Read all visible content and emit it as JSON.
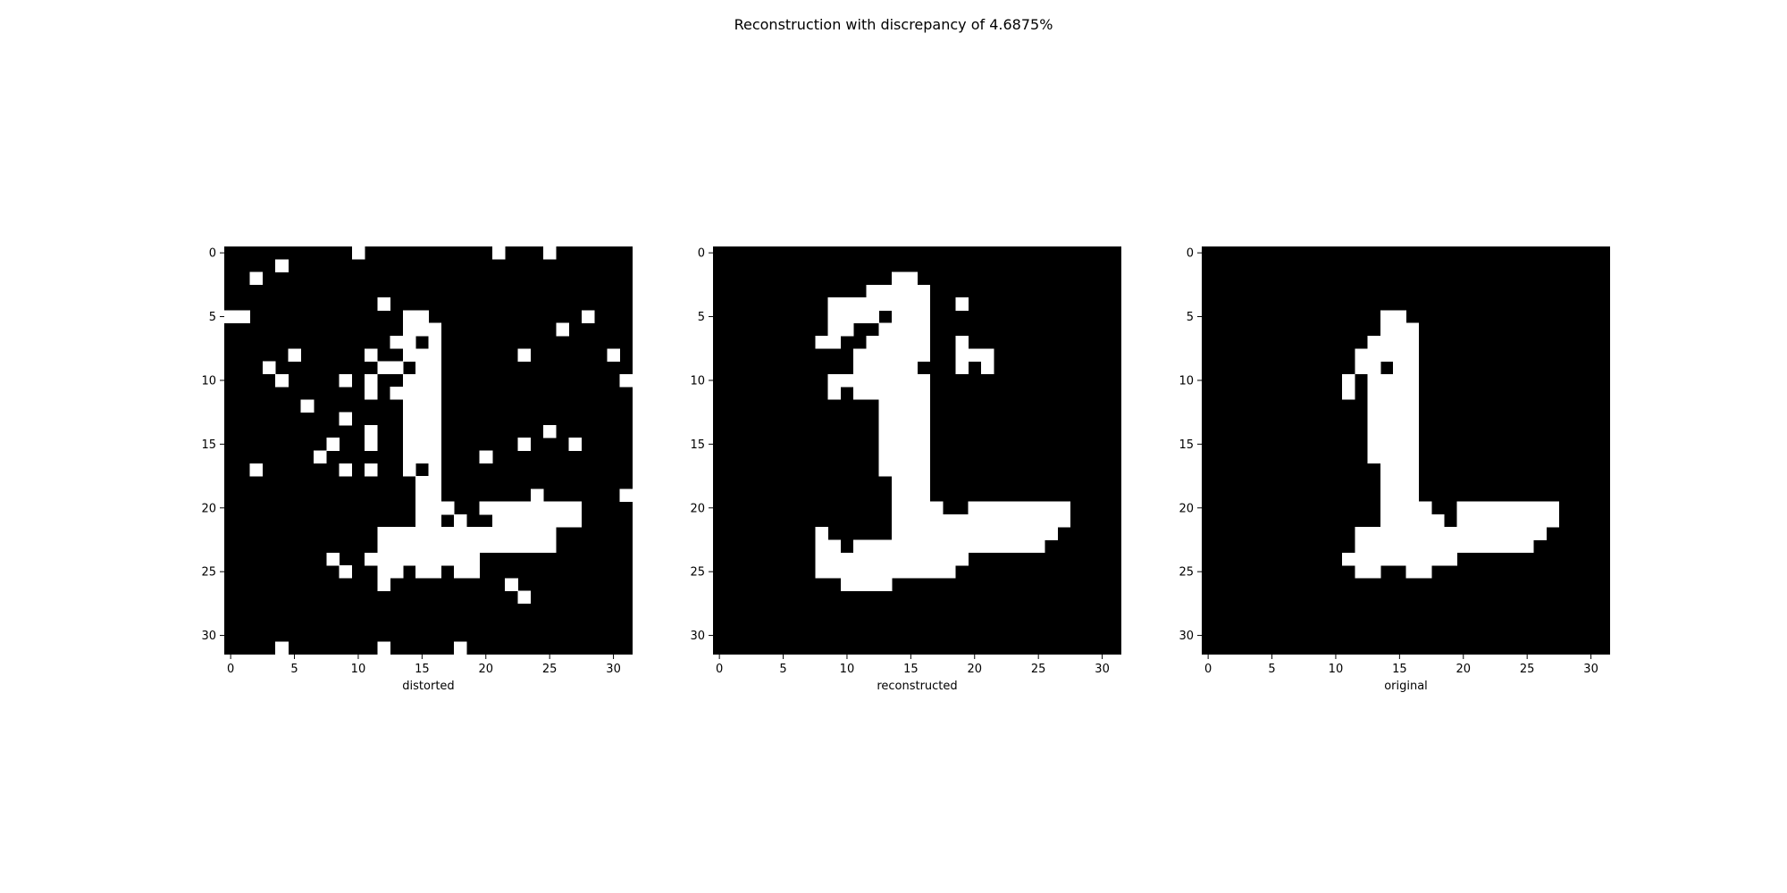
{
  "title": "Reconstruction with discrepancy of 4.6875%",
  "chart_data": [
    {
      "type": "heatmap",
      "xlabel": "distorted",
      "xlim": [
        0,
        31
      ],
      "ylim": [
        0,
        31
      ],
      "x_ticks": [
        0,
        5,
        10,
        15,
        20,
        25,
        30
      ],
      "y_ticks": [
        0,
        5,
        10,
        15,
        20,
        25,
        30
      ],
      "colors": {
        "on": "#ffffff",
        "off": "#000000"
      },
      "rows": [
        "00000000001000000000010001000000",
        "00001000000000000000000000000000",
        "00100000000000000000000000000000",
        "00000000000000000000000000000000",
        "00000000000010000000000000000000",
        "11000000000000110000000000001000",
        "00000000000000111000000000100000",
        "00000000000001101000000000000000",
        "00000100000100111000000100000010",
        "00010000000011011000000000000000",
        "00001000010100111000000000000001",
        "00000000000101111000000000000000",
        "00000010000000111000000000000000",
        "00000000010000111000000000000000",
        "00000000000100111000000001000000",
        "00000000100100111000000100010000",
        "00000001000000111000100000000000",
        "00100000010100101000000000000000",
        "00000000000000011000000000000000",
        "00000000000000011000000010000001",
        "00000000000000011100111111110000",
        "00000000000000011010011111110000",
        "00000000000011111111111111000000",
        "00000000000011111111111111000000",
        "00000000100111111111000000000000",
        "00000000010011011011000000000000",
        "00000000000010000000001000000000",
        "00000000000000000000000100000000",
        "00000000000000000000000000000000",
        "00000000000000000000000000000000",
        "00000000000000000000000000000000",
        "00001000000010000010000000000000"
      ]
    },
    {
      "type": "heatmap",
      "xlabel": "reconstructed",
      "xlim": [
        0,
        31
      ],
      "ylim": [
        0,
        31
      ],
      "x_ticks": [
        0,
        5,
        10,
        15,
        20,
        25,
        30
      ],
      "y_ticks": [
        0,
        5,
        10,
        15,
        20,
        25,
        30
      ],
      "colors": {
        "on": "#ffffff",
        "off": "#000000"
      },
      "rows": [
        "00000000000000000000000000000000",
        "00000000000000000000000000000000",
        "00000000000000110000000000000000",
        "00000000000011111000000000000000",
        "00000000011111111001000000000000",
        "00000000011110111000000000000000",
        "00000000011001111000000000000000",
        "00000000110011111001000000000000",
        "00000000000111111001110000000000",
        "00000000000111110001010000000000",
        "00000000011111111000000000000000",
        "00000000010111111000000000000000",
        "00000000000001111000000000000000",
        "00000000000001111000000000000000",
        "00000000000001111000000000000000",
        "00000000000001111000000000000000",
        "00000000000001111000000000000000",
        "00000000000001111000000000000000",
        "00000000000000111000000000000000",
        "00000000000000111000000000000000",
        "00000000000000111100111111110000",
        "00000000000000111111111111110000",
        "00000000100000111111111111100000",
        "00000000110111111111111111000000",
        "00000000111111111111000000000000",
        "00000000111111111110000000000000",
        "00000000001111000000000000000000",
        "00000000000000000000000000000000",
        "00000000000000000000000000000000",
        "00000000000000000000000000000000",
        "00000000000000000000000000000000",
        "00000000000000000000000000000000"
      ]
    },
    {
      "type": "heatmap",
      "xlabel": "original",
      "xlim": [
        0,
        31
      ],
      "ylim": [
        0,
        31
      ],
      "x_ticks": [
        0,
        5,
        10,
        15,
        20,
        25,
        30
      ],
      "y_ticks": [
        0,
        5,
        10,
        15,
        20,
        25,
        30
      ],
      "colors": {
        "on": "#ffffff",
        "off": "#000000"
      },
      "rows": [
        "00000000000000000000000000000000",
        "00000000000000000000000000000000",
        "00000000000000000000000000000000",
        "00000000000000000000000000000000",
        "00000000000000000000000000000000",
        "00000000000000110000000000000000",
        "00000000000000111000000000000000",
        "00000000000001111000000000000000",
        "00000000000011111000000000000000",
        "00000000000011011000000000000000",
        "00000000000101111000000000000000",
        "00000000000101111000000000000000",
        "00000000000001111000000000000000",
        "00000000000001111000000000000000",
        "00000000000001111000000000000000",
        "00000000000001111000000000000000",
        "00000000000001111000000000000000",
        "00000000000000111000000000000000",
        "00000000000000111000000000000000",
        "00000000000000111000000000000000",
        "00000000000000111100111111110000",
        "00000000000000111110111111110000",
        "00000000000011111111111111100000",
        "00000000000011111111111111000000",
        "00000000000111111111000000000000",
        "00000000000011001100000000000000",
        "00000000000000000000000000000000",
        "00000000000000000000000000000000",
        "00000000000000000000000000000000",
        "00000000000000000000000000000000",
        "00000000000000000000000000000000",
        "00000000000000000000000000000000"
      ]
    }
  ]
}
